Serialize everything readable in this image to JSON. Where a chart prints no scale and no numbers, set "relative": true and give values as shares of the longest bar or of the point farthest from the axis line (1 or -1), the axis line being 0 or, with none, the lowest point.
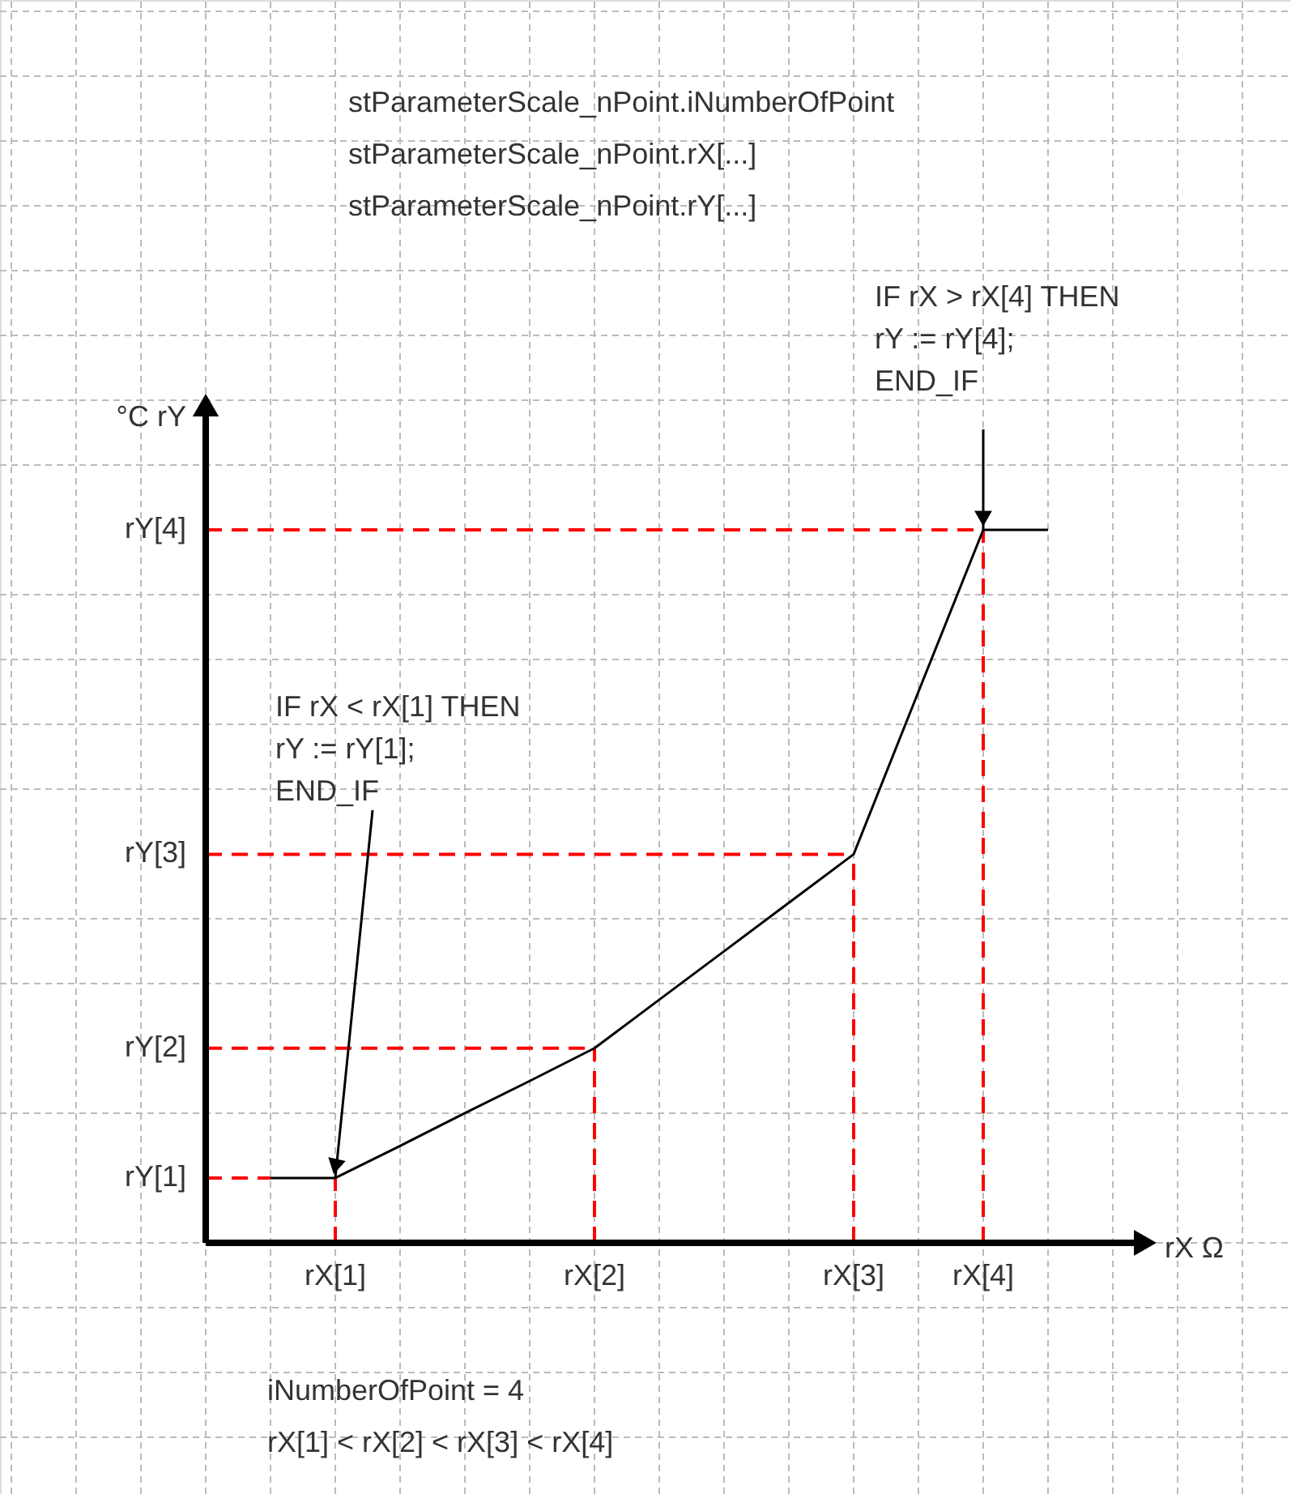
{
  "chart_data": {
    "type": "line",
    "relative": true,
    "xlabel": "rX  Ω",
    "ylabel": "°C  rY",
    "categories": [
      null,
      "rX[1]",
      null,
      null,
      null,
      "rX[2]",
      null,
      null,
      null,
      "rX[3]",
      null,
      "rX[4]",
      null
    ],
    "series": [
      {
        "color": "#000000",
        "values": [
          0.091,
          0.091,
          0.136,
          0.182,
          0.227,
          0.273,
          0.341,
          0.409,
          0.477,
          0.545,
          0.773,
          1.0,
          1.0
        ]
      }
    ],
    "ref_lines": [
      {
        "axis": "y",
        "value": 0.091,
        "label": "rY[1]",
        "color": "#ff0000",
        "line_style": "dashed"
      },
      {
        "axis": "y",
        "value": 0.273,
        "label": "rY[2]",
        "color": "#ff0000",
        "line_style": "dashed"
      },
      {
        "axis": "y",
        "value": 0.545,
        "label": "rY[3]",
        "color": "#ff0000",
        "line_style": "dashed"
      },
      {
        "axis": "y",
        "value": 1.0,
        "label": "rY[4]",
        "color": "#ff0000",
        "line_style": "dashed"
      },
      {
        "axis": "x",
        "value": "rX[1]",
        "color": "#ff0000",
        "line_style": "dashed"
      },
      {
        "axis": "x",
        "value": "rX[2]",
        "color": "#ff0000",
        "line_style": "dashed"
      },
      {
        "axis": "x",
        "value": "rX[3]",
        "color": "#ff0000",
        "line_style": "dashed"
      },
      {
        "axis": "x",
        "value": "rX[4]",
        "color": "#ff0000",
        "line_style": "dashed"
      }
    ],
    "annotations": [
      "stParameterScale_nPoint.iNumberOfPoint\nstParameterScale_nPoint.rX[...]\nstParameterScale_nPoint.rY[...]",
      {
        "text": "IF rX > rX[4] THEN\n    rY := rY[4];\nEND_IF",
        "x": "rX[4]",
        "y": 1.0
      },
      {
        "text": "IF rX < rX[1] THEN\n    rY := rY[1];\nEND_IF",
        "x": "rX[1]",
        "y": 0.091
      },
      "iNumberOfPoint = 4\nrX[1] < rX[2] < rX[3] < rX[4]"
    ],
    "grid": true,
    "line_style": "solid",
    "marker": "none"
  }
}
